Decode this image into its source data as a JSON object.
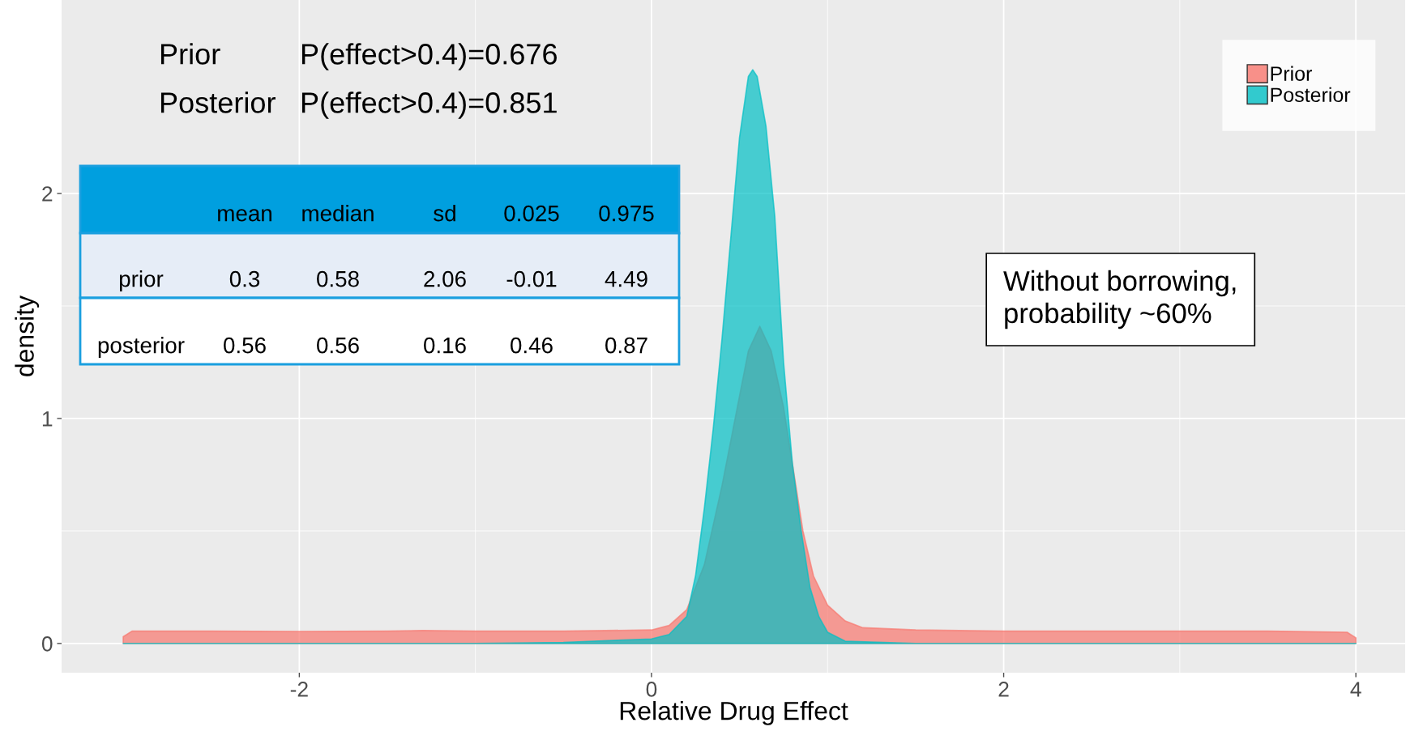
{
  "chart_data": {
    "type": "area",
    "xlabel": "Relative Drug Effect",
    "ylabel": "density",
    "xlim": [
      -3.35,
      4.28
    ],
    "ylim": [
      -0.13,
      2.86
    ],
    "xticks": [
      -2,
      0,
      2,
      4
    ],
    "yticks": [
      0,
      1,
      2
    ],
    "grid": true,
    "legend": "top right",
    "series": [
      {
        "name": "Prior",
        "color": "#f8766d",
        "x": [
          -3,
          -2.95,
          -2.5,
          -2,
          -1.5,
          -1.3,
          -1,
          -0.5,
          0,
          0.1,
          0.2,
          0.3,
          0.4,
          0.5,
          0.55,
          0.615,
          0.68,
          0.75,
          0.8,
          0.86,
          0.92,
          1.0,
          1.1,
          1.2,
          1.5,
          2,
          2.5,
          3,
          3.5,
          3.95,
          4
        ],
        "values": [
          0.03,
          0.055,
          0.055,
          0.053,
          0.055,
          0.058,
          0.055,
          0.055,
          0.06,
          0.08,
          0.15,
          0.35,
          0.7,
          1.1,
          1.3,
          1.41,
          1.3,
          1.05,
          0.8,
          0.5,
          0.3,
          0.17,
          0.1,
          0.07,
          0.06,
          0.055,
          0.055,
          0.055,
          0.055,
          0.05,
          0.025
        ]
      },
      {
        "name": "Posterior",
        "color": "#00bfc4",
        "x": [
          -3,
          -1,
          -0.5,
          0,
          0.1,
          0.2,
          0.25,
          0.3,
          0.35,
          0.4,
          0.45,
          0.5,
          0.55,
          0.575,
          0.6,
          0.65,
          0.7,
          0.75,
          0.8,
          0.85,
          0.9,
          0.95,
          1.0,
          1.1,
          1.5,
          4
        ],
        "values": [
          0,
          0,
          0.005,
          0.02,
          0.04,
          0.12,
          0.3,
          0.6,
          0.95,
          1.35,
          1.8,
          2.25,
          2.52,
          2.55,
          2.52,
          2.3,
          1.9,
          1.25,
          0.8,
          0.5,
          0.25,
          0.12,
          0.05,
          0.01,
          0,
          0
        ]
      }
    ],
    "annotations": [
      "Prior",
      "P(effect>0.4)=0.676",
      "Posterior",
      "P(effect>0.4)=0.851",
      "Without borrowing,\nprobability ~60%",
      "mean",
      "median",
      "sd",
      "0.025",
      "0.975",
      "prior",
      "0.3",
      "0.58",
      "2.06",
      "-0.01",
      "4.49",
      "posterior",
      "0.56",
      "0.56",
      "0.16",
      "0.46",
      "0.87"
    ]
  }
}
